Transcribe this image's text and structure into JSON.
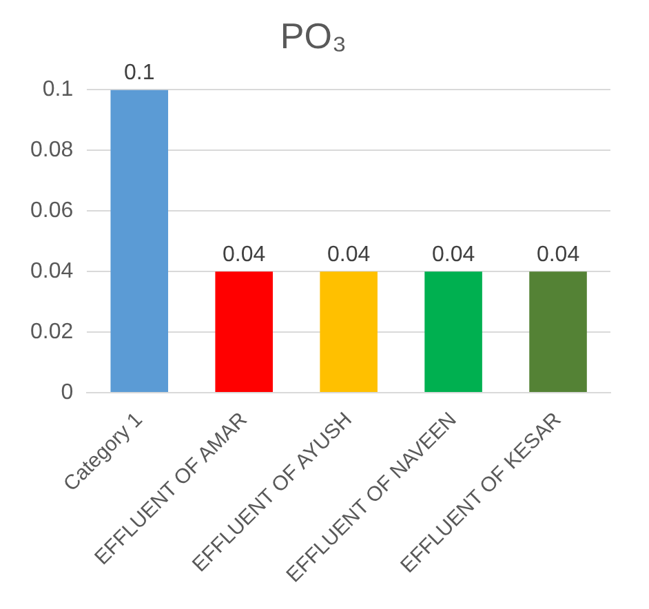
{
  "chart_data": {
    "type": "bar",
    "title": "PO₃",
    "categories": [
      "Category 1",
      "EFFLUENT OF AMAR",
      "EFFLUENT OF AYUSH",
      "EFFLUENT OF NAVEEN",
      "EFFLUENT OF KESAR"
    ],
    "values": [
      0.1,
      0.04,
      0.04,
      0.04,
      0.04
    ],
    "colors": [
      "#5b9bd5",
      "#ff0000",
      "#ffc000",
      "#00b050",
      "#548235"
    ],
    "ylim": [
      0,
      0.1
    ],
    "yticks": [
      0,
      0.02,
      0.04,
      0.06,
      0.08,
      0.1
    ],
    "grid": true,
    "data_labels": true,
    "legend": false
  }
}
